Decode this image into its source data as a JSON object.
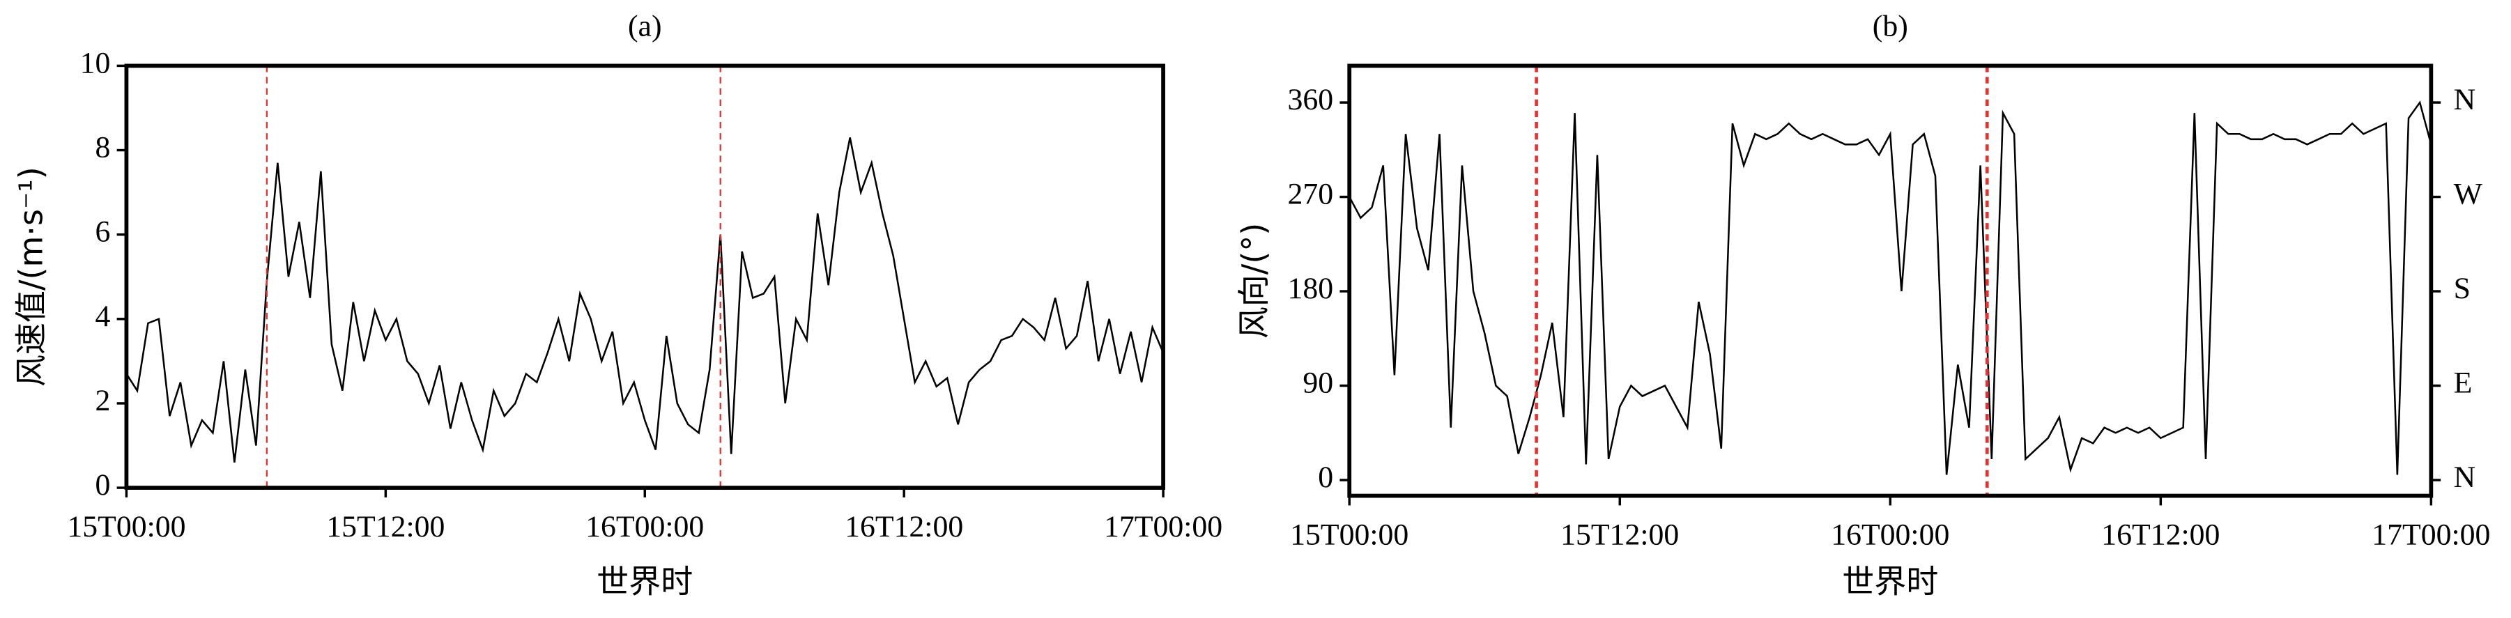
{
  "chart_data": [
    {
      "type": "line",
      "title": "(a)",
      "xlabel": "世界时",
      "ylabel": "风速值/(m·s⁻¹)",
      "color": "#000000",
      "vline_color": "#e8312f",
      "xlim": [
        0,
        48
      ],
      "xticks": [
        {
          "value": 0,
          "label": "15T00:00"
        },
        {
          "value": 12,
          "label": "15T12:00"
        },
        {
          "value": 24,
          "label": "16T00:00"
        },
        {
          "value": 36,
          "label": "16T12:00"
        },
        {
          "value": 48,
          "label": "17T00:00"
        }
      ],
      "ylim": [
        0,
        10
      ],
      "yticks": [
        0,
        2,
        4,
        6,
        8,
        10
      ],
      "vlines": [
        6.5,
        27.5
      ],
      "x": [
        0,
        0.5,
        1,
        1.5,
        2,
        2.5,
        3,
        3.5,
        4,
        4.5,
        5,
        5.5,
        6,
        6.5,
        7,
        7.5,
        8,
        8.5,
        9,
        9.5,
        10,
        10.5,
        11,
        11.5,
        12,
        12.5,
        13,
        13.5,
        14,
        14.5,
        15,
        15.5,
        16,
        16.5,
        17,
        17.5,
        18,
        18.5,
        19,
        19.5,
        20,
        20.5,
        21,
        21.5,
        22,
        22.5,
        23,
        23.5,
        24,
        24.5,
        25,
        25.5,
        26,
        26.5,
        27,
        27.5,
        28,
        28.5,
        29,
        29.5,
        30,
        30.5,
        31,
        31.5,
        32,
        32.5,
        33,
        33.5,
        34,
        34.5,
        35,
        35.5,
        36,
        36.5,
        37,
        37.5,
        38,
        38.5,
        39,
        39.5,
        40,
        40.5,
        41,
        41.5,
        42,
        42.5,
        43,
        43.5,
        44,
        44.5,
        45,
        45.5,
        46,
        46.5,
        47,
        47.5,
        48
      ],
      "values": [
        2.7,
        2.3,
        3.9,
        4.0,
        1.7,
        2.5,
        1.0,
        1.6,
        1.3,
        3.0,
        0.6,
        2.8,
        1.0,
        4.9,
        7.7,
        5.0,
        6.3,
        4.5,
        7.5,
        3.4,
        2.3,
        4.4,
        3.0,
        4.2,
        3.5,
        4.0,
        3.0,
        2.7,
        2.0,
        2.9,
        1.4,
        2.5,
        1.6,
        0.9,
        2.3,
        1.7,
        2.0,
        2.7,
        2.5,
        3.2,
        4.0,
        3.0,
        4.6,
        4.0,
        3.0,
        3.7,
        2.0,
        2.5,
        1.6,
        0.9,
        3.6,
        2.0,
        1.5,
        1.3,
        2.8,
        6.0,
        0.8,
        5.6,
        4.5,
        4.6,
        5.0,
        2.0,
        4.0,
        3.5,
        6.5,
        4.8,
        7.0,
        8.3,
        7.0,
        7.7,
        6.5,
        5.5,
        4.0,
        2.5,
        3.0,
        2.4,
        2.6,
        1.5,
        2.5,
        2.8,
        3.0,
        3.5,
        3.6,
        4.0,
        3.8,
        3.5,
        4.5,
        3.3,
        3.6,
        4.9,
        3.0,
        4.0,
        2.7,
        3.7,
        2.5,
        3.8,
        3.2
      ]
    },
    {
      "type": "line",
      "title": "(b)",
      "xlabel": "世界时",
      "ylabel": "风向/(°)",
      "color": "#000000",
      "vline_color": "#e8312f",
      "xlim": [
        0,
        48
      ],
      "xticks": [
        {
          "value": 0,
          "label": "15T00:00"
        },
        {
          "value": 12,
          "label": "15T12:00"
        },
        {
          "value": 24,
          "label": "16T00:00"
        },
        {
          "value": 36,
          "label": "16T12:00"
        },
        {
          "value": 48,
          "label": "17T00:00"
        }
      ],
      "ylim": [
        -15,
        395
      ],
      "yticks": [
        0,
        90,
        180,
        270,
        360
      ],
      "y2lim": [
        -15,
        395
      ],
      "y2ticks": [
        {
          "value": 0,
          "label": "N"
        },
        {
          "value": 90,
          "label": "E"
        },
        {
          "value": 180,
          "label": "S"
        },
        {
          "value": 270,
          "label": "W"
        },
        {
          "value": 360,
          "label": "N"
        }
      ],
      "vlines": [
        8.3,
        28.3
      ],
      "x": [
        0,
        0.5,
        1,
        1.5,
        2,
        2.5,
        3,
        3.5,
        4,
        4.5,
        5,
        5.5,
        6,
        6.5,
        7,
        7.5,
        8,
        8.5,
        9,
        9.5,
        10,
        10.5,
        11,
        11.5,
        12,
        12.5,
        13,
        13.5,
        14,
        14.5,
        15,
        15.5,
        16,
        16.5,
        17,
        17.5,
        18,
        18.5,
        19,
        19.5,
        20,
        20.5,
        21,
        21.5,
        22,
        22.5,
        23,
        23.5,
        24,
        24.5,
        25,
        25.5,
        26,
        26.5,
        27,
        27.5,
        28,
        28.5,
        29,
        29.5,
        30,
        30.5,
        31,
        31.5,
        32,
        32.5,
        33,
        33.5,
        34,
        34.5,
        35,
        35.5,
        36,
        36.5,
        37,
        37.5,
        38,
        38.5,
        39,
        39.5,
        40,
        40.5,
        41,
        41.5,
        42,
        42.5,
        43,
        43.5,
        44,
        44.5,
        45,
        45.5,
        46,
        46.5,
        47,
        47.5,
        48
      ],
      "values": [
        270,
        250,
        260,
        300,
        100,
        330,
        240,
        200,
        330,
        50,
        300,
        180,
        140,
        90,
        80,
        25,
        60,
        100,
        150,
        60,
        350,
        15,
        310,
        20,
        70,
        90,
        80,
        85,
        90,
        70,
        50,
        170,
        120,
        30,
        340,
        300,
        330,
        325,
        330,
        340,
        330,
        325,
        330,
        325,
        320,
        320,
        325,
        310,
        330,
        180,
        320,
        330,
        290,
        5,
        110,
        50,
        300,
        20,
        350,
        330,
        20,
        30,
        40,
        60,
        10,
        40,
        35,
        50,
        45,
        50,
        45,
        50,
        40,
        45,
        50,
        350,
        20,
        340,
        330,
        330,
        325,
        325,
        330,
        325,
        325,
        320,
        325,
        330,
        330,
        340,
        330,
        335,
        340,
        5,
        345,
        360,
        320
      ]
    }
  ]
}
